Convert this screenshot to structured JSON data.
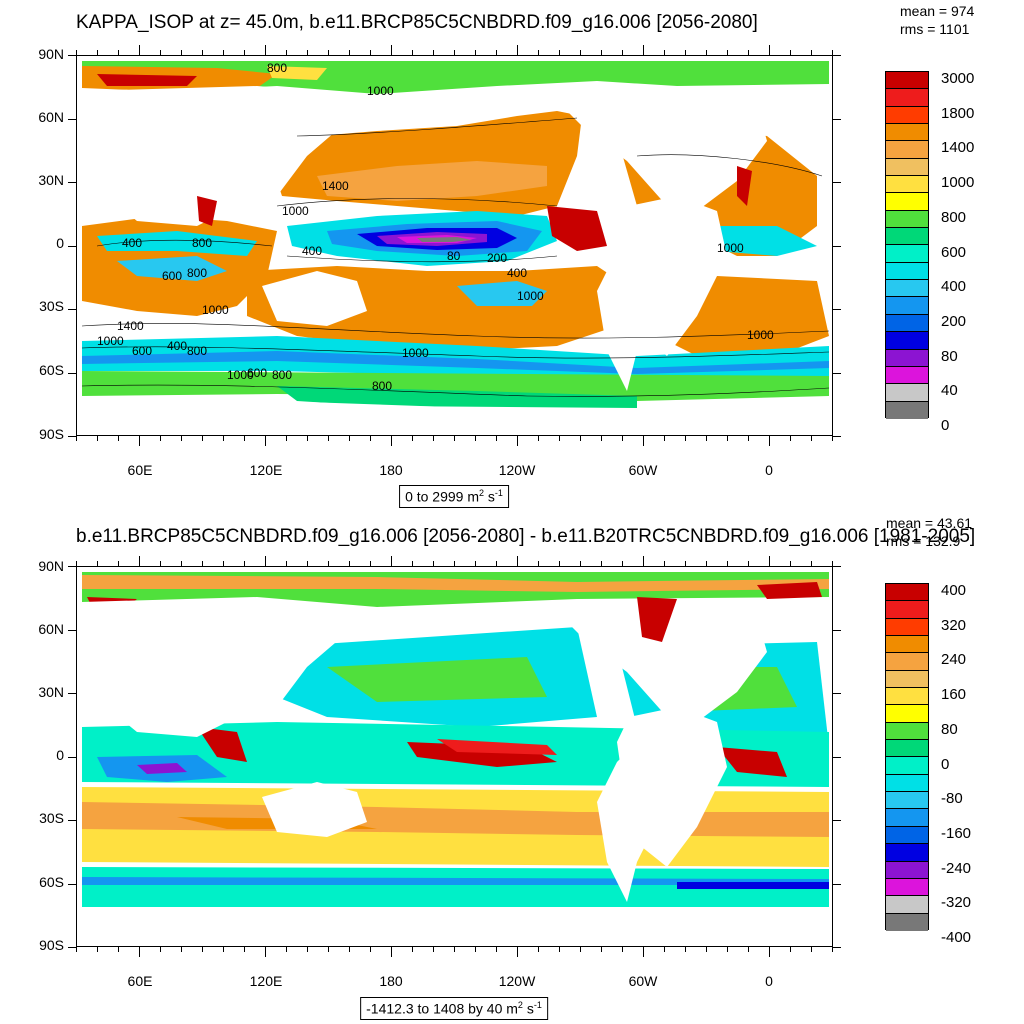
{
  "panel1": {
    "title": "KAPPA_ISOP at z=  45.0m, b.e11.BRCP85C5CNBDRD.f09_g16.006 [2056-2080]",
    "mean": "mean = 974",
    "rms": "rms = 1101",
    "lat_labels": [
      "90N",
      "60N",
      "30N",
      "0",
      "30S",
      "60S",
      "90S"
    ],
    "lon_labels": [
      "60E",
      "120E",
      "180",
      "120W",
      "60W",
      "0"
    ],
    "range_prefix": "0 to 2999 m",
    "range_unit_tail": " s",
    "colorbar_labels": [
      "3000",
      "1800",
      "1400",
      "1000",
      "800",
      "600",
      "400",
      "200",
      "80",
      "40",
      "0"
    ],
    "colorbar_colors": [
      "#c80000",
      "#ee1c1c",
      "#ff3c00",
      "#f08c00",
      "#f5a340",
      "#f0c060",
      "#ffe040",
      "#ffff00",
      "#50e03c",
      "#00d878",
      "#00f0c8",
      "#00e0e6",
      "#28c8f0",
      "#1496f0",
      "#0064e6",
      "#0000e1",
      "#8c14d2",
      "#dc14dc",
      "#c8c8c8",
      "#787878"
    ],
    "contour_labels": [
      "800",
      "1000",
      "1400",
      "1000",
      "400",
      "800",
      "400",
      "600",
      "800",
      "80",
      "200",
      "400",
      "1000",
      "1000",
      "1400",
      "1000",
      "600",
      "400",
      "800",
      "1000",
      "600",
      "800",
      "1000",
      "800",
      "1000",
      "1000"
    ]
  },
  "panel2": {
    "title": "b.e11.BRCP85C5CNBDRD.f09_g16.006 [2056-2080] - b.e11.B20TRC5CNBDRD.f09_g16.006 [1981-2005]",
    "mean": "mean = 43.61",
    "rms": "rms = 132.9",
    "lat_labels": [
      "90N",
      "60N",
      "30N",
      "0",
      "30S",
      "60S",
      "90S"
    ],
    "lon_labels": [
      "60E",
      "120E",
      "180",
      "120W",
      "60W",
      "0"
    ],
    "range_prefix": "-1412.3 to 1408 by 40 m",
    "range_unit_tail": " s",
    "colorbar_labels": [
      "400",
      "320",
      "240",
      "160",
      "80",
      "0",
      "-80",
      "-160",
      "-240",
      "-320",
      "-400"
    ],
    "colorbar_colors": [
      "#c80000",
      "#ee1c1c",
      "#ff3c00",
      "#f08c00",
      "#f5a340",
      "#f0c060",
      "#ffe040",
      "#ffff00",
      "#50e03c",
      "#00d878",
      "#00f0c8",
      "#00e0e6",
      "#28c8f0",
      "#1496f0",
      "#0064e6",
      "#0000e1",
      "#8c14d2",
      "#dc14dc",
      "#c8c8c8",
      "#787878"
    ]
  }
}
